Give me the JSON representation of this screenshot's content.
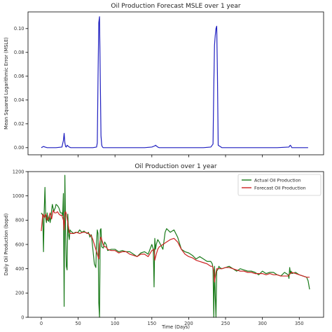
{
  "chart_data": [
    {
      "type": "line",
      "title": "Oil Production Forecast MSLE over 1 year",
      "xlabel": "",
      "ylabel": "Mean Squared Logarithmic Error (MSLE)",
      "xlim": [
        -18,
        383
      ],
      "ylim": [
        -0.006,
        0.114
      ],
      "xticks": [
        0,
        50,
        100,
        150,
        200,
        250,
        300,
        350
      ],
      "xtick_labels_visible": false,
      "yticks": [
        0.0,
        0.02,
        0.04,
        0.06,
        0.08,
        0.1
      ],
      "ytick_labels": [
        "0.00",
        "0.02",
        "0.04",
        "0.06",
        "0.08",
        "0.10"
      ],
      "grid": false,
      "series": [
        {
          "color": "#1f1fc0",
          "x": [
            0,
            3,
            5,
            8,
            12,
            20,
            28,
            30,
            31,
            32,
            33,
            34,
            35,
            38,
            40,
            50,
            60,
            70,
            75,
            76,
            77,
            78,
            79,
            80,
            81,
            82,
            83,
            84,
            90,
            100,
            120,
            140,
            150,
            154,
            155,
            156,
            158,
            160,
            180,
            200,
            220,
            230,
            233,
            234,
            235,
            236,
            237,
            238,
            239,
            240,
            245,
            260,
            280,
            300,
            320,
            336,
            337,
            338,
            339,
            340,
            350,
            360,
            362
          ],
          "y": [
            0.0,
            0.001,
            0.0005,
            0.0,
            0.0,
            0.0,
            0.0005,
            0.006,
            0.012,
            0.004,
            0.001,
            0.0005,
            0.002,
            0.0005,
            0.0,
            0.0,
            0.0,
            0.0,
            0.0005,
            0.004,
            0.06,
            0.105,
            0.11,
            0.06,
            0.01,
            0.002,
            0.0005,
            0.0,
            0.0,
            0.0,
            0.0,
            0.0,
            0.0005,
            0.0015,
            0.002,
            0.0015,
            0.0005,
            0.0,
            0.0,
            0.0,
            0.0,
            0.0005,
            0.003,
            0.05,
            0.086,
            0.094,
            0.1,
            0.102,
            0.06,
            0.002,
            0.0,
            0.0,
            0.0,
            0.0,
            0.0,
            0.0005,
            0.0015,
            0.002,
            0.001,
            0.0,
            0.0,
            0.0,
            0.0
          ]
        }
      ]
    },
    {
      "type": "line",
      "title": "Oil Production over 1 year",
      "xlabel": "Time (Days)",
      "ylabel": "Daily Oil Production (bopd)",
      "xlim": [
        -18,
        383
      ],
      "ylim": [
        0,
        1200
      ],
      "xticks": [
        0,
        50,
        100,
        150,
        200,
        250,
        300,
        350
      ],
      "xtick_labels": [
        "0",
        "50",
        "100",
        "150",
        "200",
        "250",
        "300",
        "350"
      ],
      "yticks": [
        0,
        200,
        400,
        600,
        800,
        1000,
        1200
      ],
      "ytick_labels": [
        "0",
        "200",
        "400",
        "600",
        "800",
        "1000",
        "1200"
      ],
      "grid": false,
      "legend_position": "top-right",
      "series": [
        {
          "name": "Actual Oil Production",
          "color": "#1a7a1a",
          "x": [
            0,
            2,
            3,
            4,
            5,
            6,
            7,
            8,
            9,
            10,
            11,
            12,
            13,
            14,
            15,
            16,
            17,
            18,
            19,
            20,
            22,
            24,
            26,
            28,
            29,
            30,
            31,
            32,
            33,
            34,
            35,
            36,
            37,
            38,
            39,
            40,
            42,
            44,
            46,
            48,
            50,
            52,
            55,
            58,
            60,
            62,
            64,
            66,
            68,
            70,
            72,
            74,
            75,
            76,
            77,
            78,
            79,
            80,
            81,
            82,
            84,
            86,
            88,
            90,
            95,
            100,
            105,
            110,
            115,
            120,
            125,
            130,
            135,
            140,
            145,
            150,
            152,
            153,
            154,
            155,
            156,
            157,
            158,
            160,
            165,
            168,
            170,
            175,
            180,
            185,
            190,
            195,
            200,
            205,
            210,
            215,
            220,
            225,
            230,
            232,
            233,
            234,
            235,
            236,
            237,
            238,
            239,
            240,
            241,
            242,
            245,
            250,
            255,
            260,
            265,
            270,
            275,
            280,
            285,
            290,
            295,
            300,
            305,
            310,
            315,
            320,
            325,
            330,
            335,
            336,
            337,
            338,
            339,
            340,
            345,
            350,
            355,
            360,
            362,
            364
          ],
          "y": [
            860,
            840,
            540,
            880,
            1070,
            820,
            780,
            860,
            800,
            790,
            840,
            780,
            820,
            880,
            930,
            900,
            870,
            890,
            900,
            930,
            920,
            900,
            860,
            860,
            840,
            1020,
            90,
            1170,
            700,
            420,
            390,
            850,
            680,
            640,
            720,
            710,
            700,
            690,
            700,
            700,
            700,
            720,
            700,
            710,
            700,
            690,
            700,
            660,
            680,
            560,
            440,
            410,
            620,
            720,
            690,
            120,
            0,
            720,
            730,
            580,
            570,
            620,
            600,
            550,
            560,
            560,
            540,
            550,
            540,
            540,
            520,
            500,
            530,
            540,
            520,
            600,
            560,
            250,
            650,
            560,
            600,
            620,
            640,
            620,
            560,
            700,
            730,
            700,
            720,
            660,
            560,
            540,
            530,
            510,
            480,
            500,
            480,
            460,
            460,
            440,
            400,
            0,
            420,
            180,
            0,
            380,
            390,
            400,
            420,
            410,
            400,
            410,
            420,
            400,
            380,
            400,
            390,
            380,
            380,
            370,
            350,
            380,
            360,
            370,
            370,
            350,
            340,
            370,
            350,
            320,
            410,
            360,
            380,
            360,
            370,
            350,
            340,
            330,
            300,
            230
          ]
        },
        {
          "name": "Forecast Oil Production",
          "color": "#cc2222",
          "x": [
            0,
            2,
            4,
            6,
            8,
            10,
            12,
            14,
            16,
            18,
            20,
            22,
            24,
            26,
            28,
            30,
            31,
            32,
            33,
            34,
            36,
            38,
            40,
            44,
            48,
            52,
            56,
            60,
            64,
            68,
            70,
            72,
            74,
            76,
            78,
            79,
            80,
            81,
            82,
            84,
            86,
            88,
            90,
            95,
            100,
            105,
            110,
            115,
            120,
            125,
            130,
            135,
            140,
            145,
            150,
            153,
            154,
            156,
            158,
            160,
            165,
            170,
            175,
            180,
            185,
            190,
            195,
            200,
            205,
            210,
            215,
            220,
            225,
            230,
            232,
            233,
            234,
            235,
            236,
            237,
            238,
            240,
            242,
            245,
            250,
            255,
            260,
            265,
            270,
            275,
            280,
            285,
            290,
            295,
            300,
            305,
            310,
            315,
            320,
            325,
            330,
            335,
            336,
            338,
            340,
            345,
            350,
            355,
            360,
            364
          ],
          "y": [
            710,
            850,
            820,
            850,
            800,
            820,
            860,
            810,
            880,
            860,
            860,
            870,
            850,
            840,
            840,
            800,
            720,
            860,
            870,
            850,
            780,
            700,
            690,
            690,
            700,
            690,
            700,
            700,
            690,
            670,
            640,
            600,
            560,
            520,
            480,
            600,
            640,
            660,
            640,
            600,
            580,
            580,
            560,
            550,
            550,
            530,
            540,
            540,
            520,
            510,
            500,
            520,
            520,
            500,
            550,
            560,
            470,
            520,
            560,
            580,
            600,
            620,
            640,
            650,
            620,
            560,
            520,
            500,
            490,
            470,
            460,
            450,
            440,
            420,
            420,
            410,
            380,
            290,
            330,
            370,
            400,
            400,
            400,
            400,
            410,
            410,
            400,
            390,
            380,
            380,
            370,
            370,
            360,
            360,
            360,
            350,
            360,
            350,
            350,
            340,
            340,
            340,
            350,
            360,
            370,
            360,
            350,
            340,
            330,
            330
          ]
        }
      ]
    }
  ]
}
